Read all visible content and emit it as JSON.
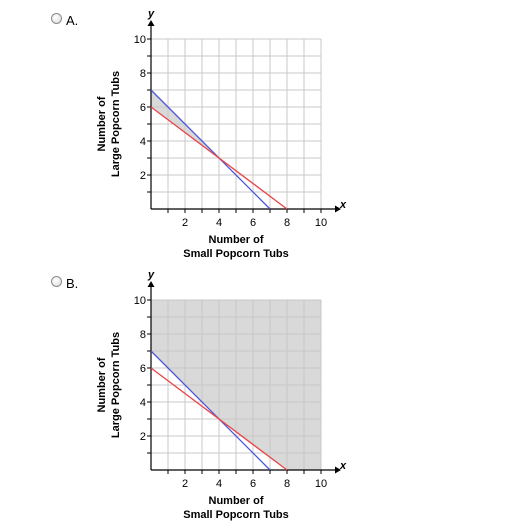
{
  "options": [
    {
      "label": "A.",
      "chart_data": {
        "type": "line",
        "x_variable": "x",
        "y_variable": "y",
        "xlabel": [
          "Number of",
          "Small Popcorn Tubs"
        ],
        "ylabel": [
          "Number of",
          "Large Popcorn Tubs"
        ],
        "xlim": [
          0,
          10
        ],
        "ylim": [
          0,
          10
        ],
        "x_ticks": [
          "2",
          "4",
          "6",
          "8",
          "10"
        ],
        "y_ticks": [
          "2",
          "4",
          "6",
          "8",
          "10"
        ],
        "grid": true,
        "series": [
          {
            "color": "#4a55d8",
            "points": [
              [
                0,
                7
              ],
              [
                7,
                0
              ]
            ]
          },
          {
            "color": "#e8474a",
            "points": [
              [
                0,
                6
              ],
              [
                8,
                0
              ]
            ]
          }
        ],
        "shaded_region": {
          "fill": "#d9d9d9",
          "polygon": [
            [
              0,
              6
            ],
            [
              0,
              7
            ],
            [
              4,
              3
            ]
          ]
        }
      }
    },
    {
      "label": "B.",
      "chart_data": {
        "type": "line",
        "x_variable": "x",
        "y_variable": "y",
        "xlabel": [
          "Number of",
          "Small Popcorn Tubs"
        ],
        "ylabel": [
          "Number of",
          "Large Popcorn Tubs"
        ],
        "xlim": [
          0,
          10
        ],
        "ylim": [
          0,
          10
        ],
        "x_ticks": [
          "2",
          "4",
          "6",
          "8",
          "10"
        ],
        "y_ticks": [
          "2",
          "4",
          "6",
          "8",
          "10"
        ],
        "grid": true,
        "series": [
          {
            "color": "#4a55d8",
            "points": [
              [
                0,
                7
              ],
              [
                7,
                0
              ]
            ]
          },
          {
            "color": "#e8474a",
            "points": [
              [
                0,
                6
              ],
              [
                8,
                0
              ]
            ]
          }
        ],
        "shaded_region": {
          "fill": "#d9d9d9",
          "polygon": [
            [
              0,
              7
            ],
            [
              0,
              10
            ],
            [
              10,
              10
            ],
            [
              10,
              0
            ],
            [
              8,
              0
            ],
            [
              4,
              3
            ]
          ]
        }
      }
    }
  ]
}
